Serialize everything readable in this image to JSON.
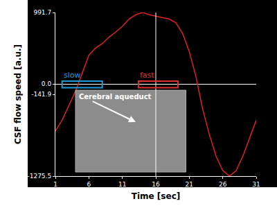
{
  "chart_data": {
    "type": "line",
    "x_label": "Time [sec]",
    "y_label": "CSF flow speed [a.u.]",
    "x": [
      1,
      2,
      3,
      4,
      5,
      6,
      7,
      8,
      9,
      10,
      11,
      12,
      13,
      14,
      15,
      16,
      17,
      18,
      19,
      20,
      21,
      22,
      23,
      24,
      25,
      26,
      27,
      28,
      29,
      30,
      31
    ],
    "series": [
      {
        "name": "CSF flow speed",
        "color": "#e0201e",
        "values": [
          -650,
          -500,
          -300,
          -100,
          150,
          400,
          500,
          560,
          650,
          720,
          800,
          900,
          960,
          991.7,
          960,
          940,
          920,
          900,
          850,
          700,
          450,
          100,
          -350,
          -700,
          -1000,
          -1200,
          -1275.5,
          -1200,
          -1000,
          -750,
          -500
        ]
      }
    ],
    "xlim": [
      1,
      31
    ],
    "xticks": [
      1,
      6,
      11,
      16,
      21,
      26,
      31
    ],
    "ylim": [
      -1275.5,
      991.7
    ],
    "yticks": [
      991.7,
      {
        "value": 0,
        "label": "0.0"
      },
      -141.9,
      -1275.5
    ],
    "grid": false,
    "cursor_x": 16,
    "regions": [
      {
        "text": "slow",
        "x": [
          2,
          8
        ],
        "y": [
          -50,
          40
        ],
        "color": "#1e9bd7"
      },
      {
        "text": "fast",
        "x": [
          13.4,
          19.3
        ],
        "y": [
          -50,
          40
        ],
        "color": "#e03030"
      }
    ],
    "inset": {
      "text": "Cerebral aqueduct"
    }
  }
}
